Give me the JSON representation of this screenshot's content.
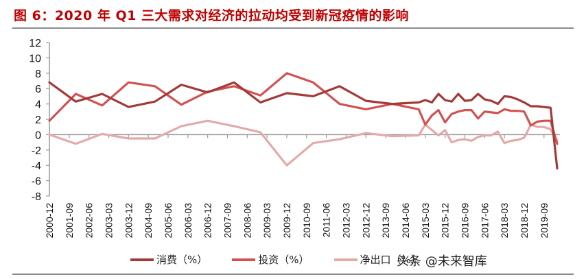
{
  "title": "图 6：2020 年 Q1 三大需求对经济的拉动均受到新冠疫情的影响",
  "watermark": "头条 @未来智库",
  "colors": {
    "title": "#c00000",
    "consumption": "#a33a3a",
    "investment": "#d25252",
    "net_exports": "#e3aaaa",
    "axis": "#9a9a9a"
  },
  "chart_data": {
    "type": "line",
    "title": "图 6：2020 年 Q1 三大需求对经济的拉动均受到新冠疫情的影响",
    "xlabel": "",
    "ylabel": "",
    "ylim": [
      -8,
      12
    ],
    "yticks": [
      12,
      10,
      8,
      6,
      4,
      2,
      0,
      -2,
      -4,
      -6,
      -8
    ],
    "grid": false,
    "legend_position": "bottom",
    "x_tick_labels": [
      "2000-12",
      "2001-09",
      "2002-06",
      "2003-03",
      "2003-12",
      "2004-09",
      "2005-06",
      "2006-03",
      "2006-12",
      "2007-09",
      "2008-06",
      "2009-03",
      "2009-12",
      "2010-09",
      "2011-06",
      "2012-03",
      "2012-12",
      "2013-09",
      "2014-06",
      "2015-03",
      "2015-12",
      "2016-09",
      "2017-06",
      "2018-03",
      "2018-12",
      "2019-09"
    ],
    "x": [
      "2000-12",
      "2001-12",
      "2002-12",
      "2003-12",
      "2004-12",
      "2005-12",
      "2006-12",
      "2007-12",
      "2008-12",
      "2009-12",
      "2010-12",
      "2011-12",
      "2012-12",
      "2013-12",
      "2014-12",
      "2015-03",
      "2015-06",
      "2015-09",
      "2015-12",
      "2016-03",
      "2016-06",
      "2016-09",
      "2016-12",
      "2017-03",
      "2017-06",
      "2017-09",
      "2017-12",
      "2018-03",
      "2018-06",
      "2018-09",
      "2018-12",
      "2019-03",
      "2019-06",
      "2019-09",
      "2019-12",
      "2020-03"
    ],
    "series": [
      {
        "name": "消费（%）",
        "values": [
          6.8,
          4.3,
          5.3,
          3.6,
          4.3,
          6.5,
          5.5,
          6.8,
          4.2,
          5.4,
          5.0,
          6.3,
          4.4,
          4.0,
          4.2,
          4.5,
          4.2,
          5.3,
          4.5,
          4.3,
          5.3,
          4.4,
          4.5,
          5.3,
          4.6,
          4.4,
          4.0,
          5.0,
          4.9,
          4.6,
          4.2,
          3.7,
          3.7,
          3.6,
          3.5,
          -4.4
        ]
      },
      {
        "name": "投资（%）",
        "values": [
          1.8,
          5.3,
          3.8,
          6.8,
          6.3,
          3.9,
          5.6,
          6.3,
          5.1,
          8.0,
          6.8,
          4.0,
          3.3,
          4.0,
          3.3,
          1.3,
          2.5,
          3.2,
          1.6,
          2.7,
          3.0,
          3.2,
          3.2,
          2.1,
          3.0,
          2.9,
          2.8,
          3.3,
          3.1,
          3.1,
          3.0,
          1.2,
          1.7,
          1.8,
          1.8,
          -1.2
        ]
      },
      {
        "name": "净出口（%）",
        "values": [
          0.0,
          -1.2,
          0.1,
          -0.5,
          -0.5,
          1.1,
          1.8,
          1.1,
          0.3,
          -4.0,
          -1.1,
          -0.6,
          0.2,
          -0.2,
          -0.1,
          1.3,
          0.6,
          -0.1,
          0.6,
          -1.0,
          -0.7,
          -0.6,
          -0.8,
          -0.3,
          -0.1,
          -0.1,
          0.4,
          -1.1,
          -0.8,
          -0.7,
          -0.4,
          1.3,
          1.0,
          1.0,
          0.7,
          -0.8
        ]
      }
    ]
  },
  "legend": [
    {
      "label": "消费（%）",
      "color": "#a33a3a"
    },
    {
      "label": "投资（%）",
      "color": "#d25252"
    },
    {
      "label": "净出口（%）",
      "color": "#e3aaaa"
    }
  ]
}
